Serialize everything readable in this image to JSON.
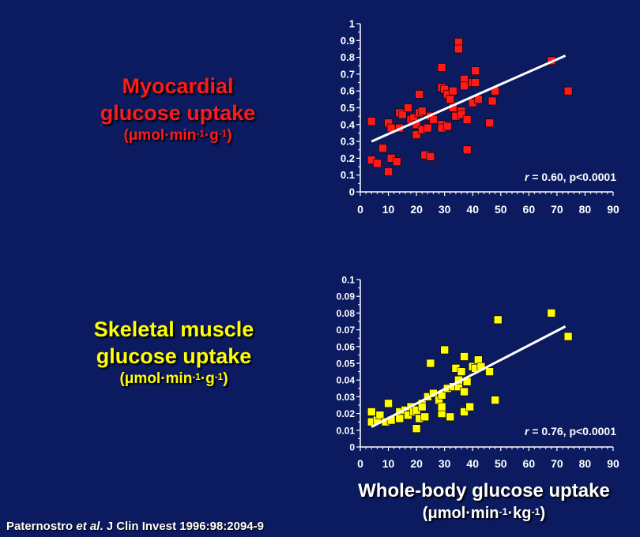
{
  "labels": {
    "myocardial": {
      "line1": "Myocardial",
      "line2": "glucose uptake",
      "unit_pre": "(μmol·min",
      "unit_sup1": "-1",
      "unit_mid": "·g",
      "unit_sup2": "-1",
      "unit_post": ")"
    },
    "skeletal": {
      "line1": "Skeletal muscle",
      "line2": "glucose uptake",
      "unit_pre": "(μmol·min",
      "unit_sup1": "-1",
      "unit_mid": "·g",
      "unit_sup2": "-1",
      "unit_post": ")"
    }
  },
  "x_title": {
    "line1": "Whole-body glucose uptake",
    "unit_pre": "(μmol·min",
    "unit_sup1": "-1",
    "unit_mid": "·kg",
    "unit_sup2": "-1",
    "unit_post": ")"
  },
  "citation": {
    "author": "Paternostro ",
    "etal": "et al",
    "rest": ". J Clin Invest 1996:98:2094-9"
  },
  "colors": {
    "background": "#0c1a60",
    "myocardial": "#ff1a1a",
    "skeletal": "#ffff00",
    "fit_line": "#ffffff"
  },
  "chart_data": [
    {
      "type": "scatter",
      "name": "myocardial",
      "xlim": [
        0,
        90
      ],
      "ylim": [
        0,
        1
      ],
      "x_ticks": [
        0,
        10,
        20,
        30,
        40,
        50,
        60,
        70,
        80,
        90
      ],
      "y_ticks": [
        "0",
        "0.1",
        "0.2",
        "0.3",
        "0.4",
        "0.5",
        "0.6",
        "0.7",
        "0.8",
        "0.9",
        "1"
      ],
      "annotation": {
        "r": "r",
        "text": " = 0.60, p<0.0001"
      },
      "marker_color": "#ff1a1a",
      "fit_line": {
        "x": [
          4,
          73
        ],
        "y": [
          0.3,
          0.81
        ]
      },
      "points": [
        [
          4,
          0.42
        ],
        [
          4,
          0.19
        ],
        [
          6,
          0.17
        ],
        [
          8,
          0.26
        ],
        [
          10,
          0.41
        ],
        [
          10,
          0.12
        ],
        [
          11,
          0.38
        ],
        [
          11,
          0.2
        ],
        [
          13,
          0.18
        ],
        [
          14,
          0.38
        ],
        [
          14,
          0.47
        ],
        [
          15,
          0.46
        ],
        [
          17,
          0.5
        ],
        [
          18,
          0.43
        ],
        [
          19,
          0.44
        ],
        [
          20,
          0.4
        ],
        [
          20,
          0.34
        ],
        [
          21,
          0.47
        ],
        [
          21,
          0.58
        ],
        [
          22,
          0.48
        ],
        [
          22,
          0.37
        ],
        [
          23,
          0.22
        ],
        [
          24,
          0.38
        ],
        [
          25,
          0.21
        ],
        [
          25,
          0.45
        ],
        [
          26,
          0.43
        ],
        [
          29,
          0.4
        ],
        [
          29,
          0.38
        ],
        [
          29,
          0.62
        ],
        [
          29,
          0.74
        ],
        [
          30,
          0.61
        ],
        [
          31,
          0.39
        ],
        [
          31,
          0.58
        ],
        [
          32,
          0.55
        ],
        [
          33,
          0.5
        ],
        [
          33,
          0.6
        ],
        [
          34,
          0.45
        ],
        [
          35,
          0.89
        ],
        [
          35,
          0.85
        ],
        [
          36,
          0.48
        ],
        [
          36,
          0.46
        ],
        [
          37,
          0.67
        ],
        [
          37,
          0.63
        ],
        [
          38,
          0.43
        ],
        [
          38,
          0.25
        ],
        [
          40,
          0.65
        ],
        [
          40,
          0.53
        ],
        [
          41,
          0.72
        ],
        [
          41,
          0.65
        ],
        [
          42,
          0.55
        ],
        [
          46,
          0.41
        ],
        [
          47,
          0.54
        ],
        [
          48,
          0.6
        ],
        [
          68,
          0.78
        ],
        [
          74,
          0.6
        ]
      ]
    },
    {
      "type": "scatter",
      "name": "skeletal",
      "xlim": [
        0,
        90
      ],
      "ylim": [
        0,
        0.1
      ],
      "x_ticks": [
        0,
        10,
        20,
        30,
        40,
        50,
        60,
        70,
        80,
        90
      ],
      "y_ticks": [
        "0",
        "0.01",
        "0.02",
        "0.03",
        "0.04",
        "0.05",
        "0.06",
        "0.07",
        "0.08",
        "0.09",
        "0.1"
      ],
      "annotation": {
        "r": "r",
        "text": " = 0.76, p<0.0001"
      },
      "marker_color": "#ffff00",
      "fit_line": {
        "x": [
          4,
          73
        ],
        "y": [
          0.012,
          0.072
        ]
      },
      "points": [
        [
          4,
          0.021
        ],
        [
          4,
          0.015
        ],
        [
          6,
          0.016
        ],
        [
          7,
          0.019
        ],
        [
          9,
          0.015
        ],
        [
          10,
          0.026
        ],
        [
          11,
          0.016
        ],
        [
          14,
          0.021
        ],
        [
          14,
          0.017
        ],
        [
          16,
          0.022
        ],
        [
          17,
          0.019
        ],
        [
          18,
          0.024
        ],
        [
          19,
          0.021
        ],
        [
          20,
          0.011
        ],
        [
          20,
          0.022
        ],
        [
          21,
          0.017
        ],
        [
          22,
          0.026
        ],
        [
          22,
          0.024
        ],
        [
          23,
          0.018
        ],
        [
          24,
          0.03
        ],
        [
          25,
          0.05
        ],
        [
          26,
          0.032
        ],
        [
          28,
          0.028
        ],
        [
          29,
          0.02
        ],
        [
          29,
          0.024
        ],
        [
          29,
          0.031
        ],
        [
          30,
          0.058
        ],
        [
          31,
          0.035
        ],
        [
          32,
          0.018
        ],
        [
          33,
          0.036
        ],
        [
          34,
          0.047
        ],
        [
          35,
          0.036
        ],
        [
          35,
          0.04
        ],
        [
          36,
          0.045
        ],
        [
          37,
          0.054
        ],
        [
          37,
          0.033
        ],
        [
          37,
          0.021
        ],
        [
          38,
          0.039
        ],
        [
          39,
          0.024
        ],
        [
          40,
          0.048
        ],
        [
          41,
          0.047
        ],
        [
          42,
          0.052
        ],
        [
          43,
          0.048
        ],
        [
          46,
          0.045
        ],
        [
          48,
          0.028
        ],
        [
          49,
          0.076
        ],
        [
          68,
          0.08
        ],
        [
          74,
          0.066
        ]
      ]
    }
  ]
}
